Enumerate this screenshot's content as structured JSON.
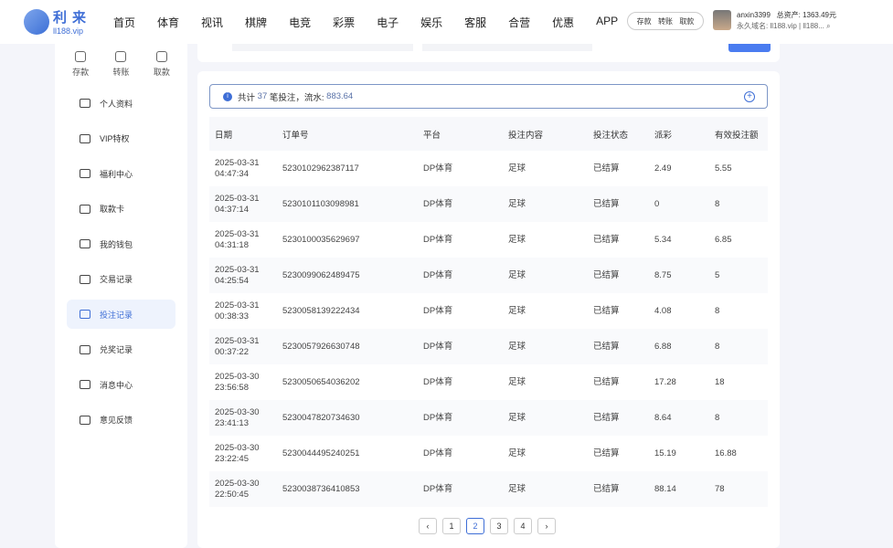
{
  "brand": {
    "name": "利来",
    "domain": "ll188.vip"
  },
  "nav": [
    "首页",
    "体育",
    "视讯",
    "棋牌",
    "电竞",
    "彩票",
    "电子",
    "娱乐",
    "客服",
    "合营",
    "优惠",
    "APP"
  ],
  "quick_actions": [
    "存款",
    "转账",
    "取款"
  ],
  "user": {
    "name": "anxin3399",
    "assets_label": "总资产:",
    "assets": "1363.49元",
    "domain_line": "永久域名: ll188.vip | ll188..."
  },
  "sidebar": {
    "actions": [
      {
        "label": "存款",
        "icon": "deposit-icon"
      },
      {
        "label": "转账",
        "icon": "transfer-icon"
      },
      {
        "label": "取款",
        "icon": "withdraw-icon"
      }
    ],
    "items": [
      {
        "label": "个人资料",
        "icon": "id-card-icon"
      },
      {
        "label": "VIP特权",
        "icon": "crown-icon"
      },
      {
        "label": "福利中心",
        "icon": "gift-icon"
      },
      {
        "label": "取款卡",
        "icon": "card-icon"
      },
      {
        "label": "我的钱包",
        "icon": "wallet-icon"
      },
      {
        "label": "交易记录",
        "icon": "list-icon"
      },
      {
        "label": "投注记录",
        "icon": "bet-record-icon",
        "active": true
      },
      {
        "label": "兑奖记录",
        "icon": "prize-icon"
      },
      {
        "label": "消息中心",
        "icon": "mail-icon"
      },
      {
        "label": "意见反馈",
        "icon": "feedback-icon"
      }
    ]
  },
  "summary": {
    "prefix": "共计",
    "count": "37",
    "mid": "笔投注，流水:",
    "amount": "883.64"
  },
  "table": {
    "headers": [
      "日期",
      "订单号",
      "平台",
      "投注内容",
      "投注状态",
      "派彩",
      "有效投注额"
    ],
    "rows": [
      [
        "2025-03-31",
        "04:47:34",
        "5230102962387117",
        "DP体育",
        "足球",
        "已结算",
        "2.49",
        "5.55"
      ],
      [
        "2025-03-31",
        "04:37:14",
        "5230101103098981",
        "DP体育",
        "足球",
        "已结算",
        "0",
        "8"
      ],
      [
        "2025-03-31",
        "04:31:18",
        "5230100035629697",
        "DP体育",
        "足球",
        "已结算",
        "5.34",
        "6.85"
      ],
      [
        "2025-03-31",
        "04:25:54",
        "5230099062489475",
        "DP体育",
        "足球",
        "已结算",
        "8.75",
        "5"
      ],
      [
        "2025-03-31",
        "00:38:33",
        "5230058139222434",
        "DP体育",
        "足球",
        "已结算",
        "4.08",
        "8"
      ],
      [
        "2025-03-31",
        "00:37:22",
        "5230057926630748",
        "DP体育",
        "足球",
        "已结算",
        "6.88",
        "8"
      ],
      [
        "2025-03-30",
        "23:56:58",
        "5230050654036202",
        "DP体育",
        "足球",
        "已结算",
        "17.28",
        "18"
      ],
      [
        "2025-03-30",
        "23:41:13",
        "5230047820734630",
        "DP体育",
        "足球",
        "已结算",
        "8.64",
        "8"
      ],
      [
        "2025-03-30",
        "23:22:45",
        "5230044495240251",
        "DP体育",
        "足球",
        "已结算",
        "15.19",
        "16.88"
      ],
      [
        "2025-03-30",
        "22:50:45",
        "5230038736410853",
        "DP体育",
        "足球",
        "已结算",
        "88.14",
        "78"
      ]
    ]
  },
  "pagination": {
    "pages": [
      "1",
      "2",
      "3",
      "4"
    ],
    "current": "2",
    "prev": "‹",
    "next": "›"
  }
}
